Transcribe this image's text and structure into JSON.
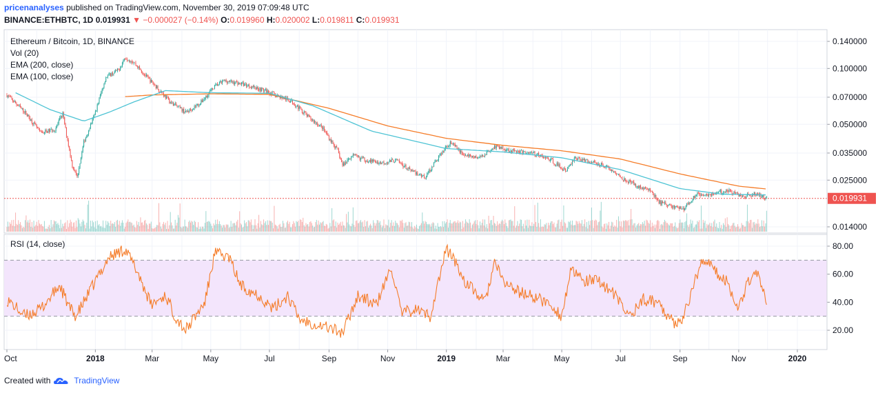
{
  "header": {
    "author": "pricenanalyses",
    "published_text": "published on TradingView.com, November 30, 2019 07:09:48 UTC",
    "symbol_line": "BINANCE:ETHBTC, 1D",
    "last": "0.019931",
    "change": "−0.000027 (−0.14%)",
    "o_label": "O:",
    "o_value": "0.019960",
    "h_label": "H:",
    "h_value": "0.020002",
    "l_label": "L:",
    "l_value": "0.019811",
    "c_label": "C:",
    "c_value": "0.019931"
  },
  "legend": {
    "title": "Ethereum / Bitcoin, 1D, BINANCE",
    "vol": "Vol (20)",
    "ema200": "EMA (200, close)",
    "ema100": "EMA (100, close)",
    "rsi": "RSI (14, close)"
  },
  "footer": {
    "created_with": "Created with",
    "brand": "TradingView"
  },
  "colors": {
    "up": "#26a69a",
    "down": "#ef5350",
    "ema200": "#f57c28",
    "ema100": "#4dc3d4",
    "rsi_line": "#f57c28",
    "rsi_band": "#f3e5fc",
    "last_price": "#ef5350"
  },
  "chart_data": {
    "type": "candlestick",
    "scale": "log",
    "price_axis_ticks": [
      "0.140000",
      "0.100000",
      "0.070000",
      "0.050000",
      "0.035000",
      "0.025000",
      "0.014000"
    ],
    "last_price_label": "0.019931",
    "rsi_axis_ticks": [
      "80.00",
      "60.00",
      "40.00",
      "20.00"
    ],
    "rsi_bands": [
      70,
      30
    ],
    "x_axis_ticks": [
      "Oct",
      "2018",
      "Mar",
      "May",
      "Jul",
      "Sep",
      "Nov",
      "2019",
      "Mar",
      "May",
      "Jul",
      "Sep",
      "Nov",
      "2020"
    ],
    "close_anchors": [
      [
        "2017-10-01",
        0.072
      ],
      [
        "2017-10-20",
        0.058
      ],
      [
        "2017-11-05",
        0.045
      ],
      [
        "2017-11-20",
        0.047
      ],
      [
        "2017-11-28",
        0.057
      ],
      [
        "2017-12-08",
        0.03
      ],
      [
        "2017-12-13",
        0.026
      ],
      [
        "2017-12-20",
        0.04
      ],
      [
        "2017-12-31",
        0.056
      ],
      [
        "2018-01-12",
        0.09
      ],
      [
        "2018-01-25",
        0.098
      ],
      [
        "2018-02-01",
        0.115
      ],
      [
        "2018-02-10",
        0.108
      ],
      [
        "2018-02-25",
        0.088
      ],
      [
        "2018-03-05",
        0.08
      ],
      [
        "2018-03-20",
        0.066
      ],
      [
        "2018-04-05",
        0.058
      ],
      [
        "2018-04-20",
        0.065
      ],
      [
        "2018-05-05",
        0.08
      ],
      [
        "2018-05-15",
        0.086
      ],
      [
        "2018-06-01",
        0.083
      ],
      [
        "2018-06-20",
        0.078
      ],
      [
        "2018-07-05",
        0.073
      ],
      [
        "2018-07-25",
        0.066
      ],
      [
        "2018-08-10",
        0.055
      ],
      [
        "2018-08-25",
        0.048
      ],
      [
        "2018-09-10",
        0.036
      ],
      [
        "2018-09-15",
        0.03
      ],
      [
        "2018-09-25",
        0.034
      ],
      [
        "2018-10-10",
        0.032
      ],
      [
        "2018-10-25",
        0.031
      ],
      [
        "2018-11-10",
        0.032
      ],
      [
        "2018-11-25",
        0.028
      ],
      [
        "2018-12-10",
        0.026
      ],
      [
        "2018-12-25",
        0.034
      ],
      [
        "2019-01-05",
        0.04
      ],
      [
        "2019-01-20",
        0.034
      ],
      [
        "2019-02-05",
        0.033
      ],
      [
        "2019-02-20",
        0.038
      ],
      [
        "2019-03-10",
        0.036
      ],
      [
        "2019-04-01",
        0.035
      ],
      [
        "2019-04-20",
        0.032
      ],
      [
        "2019-05-05",
        0.028
      ],
      [
        "2019-05-15",
        0.033
      ],
      [
        "2019-05-25",
        0.032
      ],
      [
        "2019-06-15",
        0.03
      ],
      [
        "2019-07-01",
        0.026
      ],
      [
        "2019-07-20",
        0.023
      ],
      [
        "2019-08-01",
        0.022
      ],
      [
        "2019-08-10",
        0.019
      ],
      [
        "2019-08-25",
        0.018
      ],
      [
        "2019-09-05",
        0.0175
      ],
      [
        "2019-09-18",
        0.021
      ],
      [
        "2019-10-05",
        0.021
      ],
      [
        "2019-10-20",
        0.022
      ],
      [
        "2019-11-05",
        0.0205
      ],
      [
        "2019-11-20",
        0.021
      ],
      [
        "2019-11-30",
        0.019931
      ]
    ],
    "ema200_anchors": [
      [
        "2018-02-01",
        0.0705
      ],
      [
        "2018-03-01",
        0.072
      ],
      [
        "2018-05-01",
        0.073
      ],
      [
        "2018-07-01",
        0.0725
      ],
      [
        "2018-09-01",
        0.061
      ],
      [
        "2018-11-01",
        0.049
      ],
      [
        "2019-01-01",
        0.042
      ],
      [
        "2019-03-01",
        0.0385
      ],
      [
        "2019-05-01",
        0.036
      ],
      [
        "2019-07-01",
        0.0325
      ],
      [
        "2019-09-01",
        0.027
      ],
      [
        "2019-11-01",
        0.0232
      ],
      [
        "2019-11-30",
        0.0224
      ]
    ],
    "ema100_anchors": [
      [
        "2017-10-10",
        0.074
      ],
      [
        "2017-11-15",
        0.06
      ],
      [
        "2017-12-20",
        0.052
      ],
      [
        "2018-01-15",
        0.058
      ],
      [
        "2018-02-10",
        0.066
      ],
      [
        "2018-03-15",
        0.076
      ],
      [
        "2018-05-01",
        0.074
      ],
      [
        "2018-07-01",
        0.0735
      ],
      [
        "2018-08-15",
        0.063
      ],
      [
        "2018-10-15",
        0.046
      ],
      [
        "2019-01-01",
        0.037
      ],
      [
        "2019-03-01",
        0.0355
      ],
      [
        "2019-05-01",
        0.033
      ],
      [
        "2019-07-01",
        0.0285
      ],
      [
        "2019-09-01",
        0.0225
      ],
      [
        "2019-10-15",
        0.021
      ],
      [
        "2019-11-30",
        0.0208
      ]
    ],
    "rsi_anchors": [
      [
        "2017-10-01",
        42
      ],
      [
        "2017-10-20",
        30
      ],
      [
        "2017-11-05",
        35
      ],
      [
        "2017-11-25",
        52
      ],
      [
        "2017-12-05",
        36
      ],
      [
        "2017-12-12",
        30
      ],
      [
        "2018-01-05",
        60
      ],
      [
        "2018-01-15",
        72
      ],
      [
        "2018-02-01",
        78
      ],
      [
        "2018-02-15",
        60
      ],
      [
        "2018-02-28",
        38
      ],
      [
        "2018-03-15",
        45
      ],
      [
        "2018-03-25",
        30
      ],
      [
        "2018-04-05",
        20
      ],
      [
        "2018-04-25",
        40
      ],
      [
        "2018-05-05",
        75
      ],
      [
        "2018-05-20",
        72
      ],
      [
        "2018-06-01",
        52
      ],
      [
        "2018-06-20",
        45
      ],
      [
        "2018-07-05",
        35
      ],
      [
        "2018-07-20",
        45
      ],
      [
        "2018-08-01",
        28
      ],
      [
        "2018-08-20",
        24
      ],
      [
        "2018-09-01",
        22
      ],
      [
        "2018-09-15",
        18
      ],
      [
        "2018-10-01",
        45
      ],
      [
        "2018-10-20",
        38
      ],
      [
        "2018-11-05",
        65
      ],
      [
        "2018-11-15",
        32
      ],
      [
        "2018-12-01",
        35
      ],
      [
        "2018-12-15",
        30
      ],
      [
        "2019-01-01",
        78
      ],
      [
        "2019-01-08",
        72
      ],
      [
        "2019-01-20",
        55
      ],
      [
        "2019-02-10",
        40
      ],
      [
        "2019-02-20",
        68
      ],
      [
        "2019-03-01",
        55
      ],
      [
        "2019-03-15",
        48
      ],
      [
        "2019-04-05",
        43
      ],
      [
        "2019-04-20",
        38
      ],
      [
        "2019-05-01",
        30
      ],
      [
        "2019-05-10",
        62
      ],
      [
        "2019-05-25",
        55
      ],
      [
        "2019-06-10",
        55
      ],
      [
        "2019-06-25",
        45
      ],
      [
        "2019-07-10",
        30
      ],
      [
        "2019-07-25",
        42
      ],
      [
        "2019-08-10",
        40
      ],
      [
        "2019-08-25",
        25
      ],
      [
        "2019-09-05",
        30
      ],
      [
        "2019-09-15",
        52
      ],
      [
        "2019-09-25",
        72
      ],
      [
        "2019-10-10",
        60
      ],
      [
        "2019-10-20",
        55
      ],
      [
        "2019-11-01",
        35
      ],
      [
        "2019-11-10",
        55
      ],
      [
        "2019-11-20",
        62
      ],
      [
        "2019-11-30",
        38
      ]
    ]
  }
}
